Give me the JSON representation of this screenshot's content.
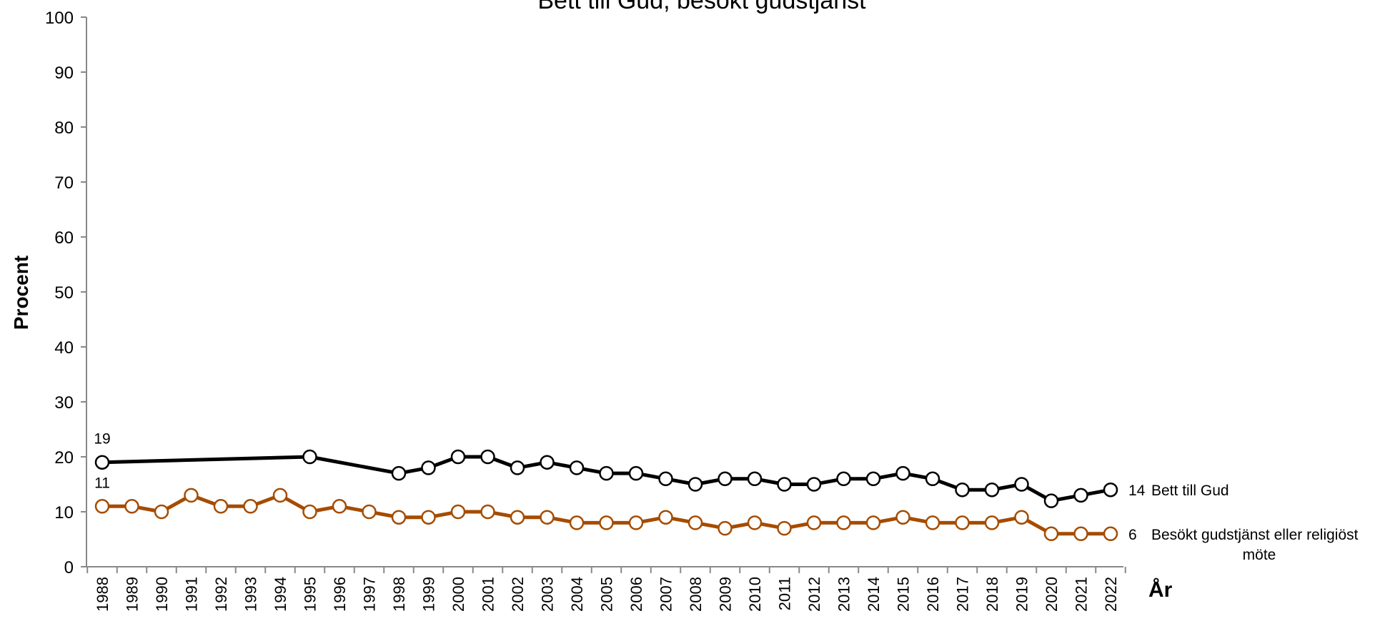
{
  "chart_data": {
    "type": "line",
    "title": "Bett till Gud, besökt gudstjänst",
    "xlabel": "År",
    "ylabel": "Procent",
    "ylim": [
      0,
      100
    ],
    "yticks": [
      0,
      10,
      20,
      30,
      40,
      50,
      60,
      70,
      80,
      90,
      100
    ],
    "grid": false,
    "categories": [
      "1988",
      "1989",
      "1990",
      "1991",
      "1992",
      "1993",
      "1994",
      "1995",
      "1996",
      "1997",
      "1998",
      "1999",
      "2000",
      "2001",
      "2002",
      "2003",
      "2004",
      "2005",
      "2006",
      "2007",
      "2008",
      "2009",
      "2010",
      "2011",
      "2012",
      "2013",
      "2014",
      "2015",
      "2016",
      "2017",
      "2018",
      "2019",
      "2020",
      "2021",
      "2022"
    ],
    "series": [
      {
        "name": "Bett till Gud",
        "color": "#000000",
        "values": [
          19,
          null,
          null,
          null,
          null,
          null,
          null,
          20,
          null,
          null,
          17,
          18,
          20,
          20,
          18,
          19,
          18,
          17,
          17,
          16,
          15,
          16,
          16,
          15,
          15,
          16,
          16,
          17,
          16,
          14,
          14,
          15,
          12,
          13,
          14
        ],
        "start_label": "19",
        "end_label": "14"
      },
      {
        "name": "Besökt gudstjänst eller religiöst möte",
        "name_lines": [
          "Besökt gudstjänst eller religiöst",
          "möte"
        ],
        "color": "#a54c00",
        "values": [
          11,
          11,
          10,
          13,
          11,
          11,
          13,
          10,
          11,
          10,
          9,
          9,
          10,
          10,
          9,
          9,
          8,
          8,
          8,
          9,
          8,
          7,
          8,
          7,
          8,
          8,
          8,
          9,
          8,
          8,
          8,
          9,
          6,
          6,
          6
        ],
        "start_label": "11",
        "end_label": "6"
      }
    ]
  }
}
